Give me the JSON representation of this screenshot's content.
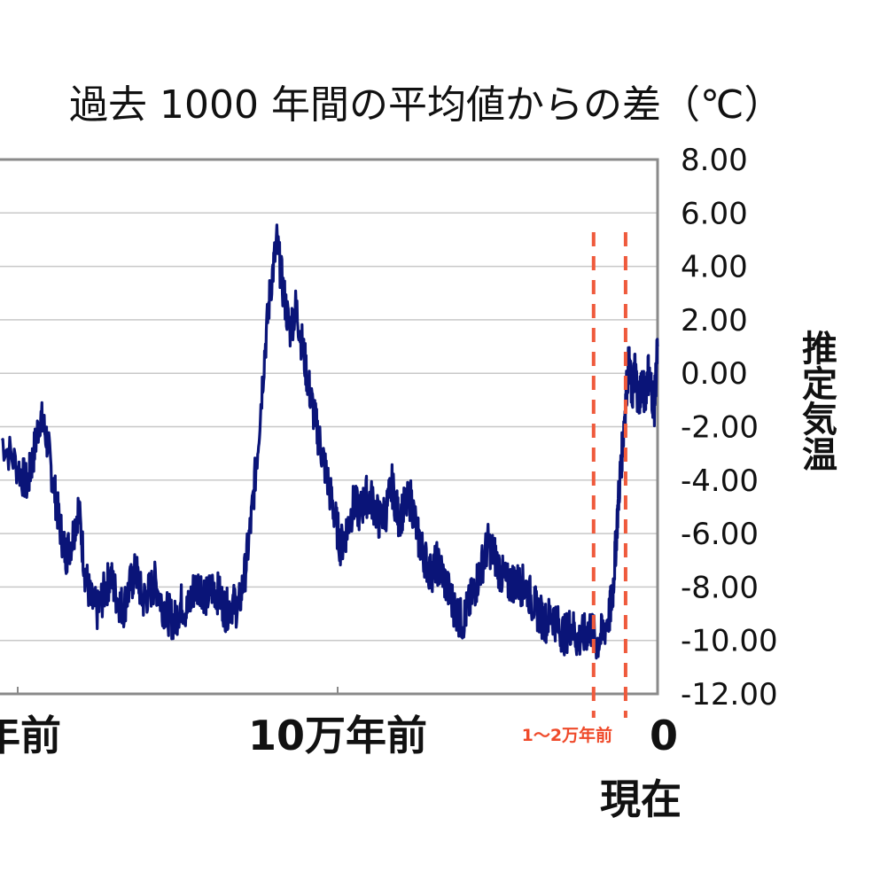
{
  "chart_data": {
    "type": "line",
    "title": "過去 1000 年間の平均値からの差（℃）",
    "ylabel": "推定気温",
    "ylim": [
      -12,
      8
    ],
    "y_ticks": [
      "8.00",
      "6.00",
      "4.00",
      "2.00",
      "0.00",
      "-2.00",
      "-4.00",
      "-6.00",
      "-8.00",
      "-10.00",
      "-12.00"
    ],
    "x_unit": "年前",
    "xlim": [
      200000,
      0
    ],
    "x_ticks": [
      {
        "x": 100000,
        "label": "10万年前"
      },
      {
        "x": 0,
        "label": "0"
      }
    ],
    "x_tick_cropped": {
      "x": 200000,
      "label": "万年前"
    },
    "now_label": "現在",
    "grid": true,
    "annotations": [
      {
        "type": "dashed-vline",
        "x": 20000
      },
      {
        "type": "dashed-vline",
        "x": 10000
      },
      {
        "type": "label",
        "text": "1〜2万年前",
        "x": 15000
      }
    ],
    "series": [
      {
        "values_note": "",
        "x": [
          205000,
          200000,
          197000,
          195000,
          193000,
          191000,
          189000,
          187000,
          185000,
          183000,
          181000,
          179000,
          177000,
          175000,
          173000,
          171000,
          169000,
          167000,
          165000,
          163000,
          161000,
          159000,
          157000,
          155000,
          153000,
          151000,
          149000,
          147000,
          145000,
          143000,
          141000,
          139000,
          137000,
          135000,
          133000,
          131000,
          129000,
          127000,
          125000,
          123000,
          121000,
          119000,
          117000,
          115000,
          113000,
          111000,
          109000,
          107000,
          105000,
          103000,
          101000,
          99000,
          97000,
          95000,
          93000,
          91000,
          89000,
          87000,
          85000,
          83000,
          81000,
          79000,
          77000,
          75000,
          73000,
          71000,
          69000,
          67000,
          65000,
          63000,
          61000,
          59000,
          57000,
          55000,
          53000,
          51000,
          49000,
          47000,
          45000,
          43000,
          41000,
          39000,
          37000,
          35000,
          33000,
          31000,
          29000,
          27000,
          25000,
          23000,
          21000,
          19000,
          17000,
          15000,
          14000,
          13000,
          12000,
          11000,
          10000,
          9000,
          8000,
          7000,
          6000,
          5000,
          4000,
          3000,
          2000,
          1000,
          0
        ],
        "values": [
          -2.5,
          -3.5,
          -4.2,
          -3.0,
          -1.6,
          -2.4,
          -4.0,
          -5.6,
          -6.8,
          -6.2,
          -5.0,
          -7.4,
          -8.6,
          -8.9,
          -8.2,
          -7.6,
          -8.4,
          -8.8,
          -8.0,
          -7.4,
          -8.5,
          -8.2,
          -7.8,
          -8.6,
          -9.0,
          -9.3,
          -8.6,
          -8.9,
          -8.1,
          -7.9,
          -8.4,
          -8.0,
          -8.3,
          -8.9,
          -8.6,
          -8.8,
          -7.5,
          -5.5,
          -2.8,
          0.5,
          3.2,
          4.9,
          3.1,
          1.6,
          2.5,
          1.0,
          -0.5,
          -1.8,
          -2.9,
          -4.1,
          -5.3,
          -6.5,
          -5.8,
          -4.9,
          -5.2,
          -4.6,
          -4.8,
          -5.5,
          -5.2,
          -4.2,
          -5.4,
          -5.0,
          -4.7,
          -6.1,
          -6.8,
          -7.5,
          -7.1,
          -7.6,
          -8.3,
          -8.9,
          -9.3,
          -8.7,
          -8.0,
          -7.2,
          -6.4,
          -6.8,
          -7.5,
          -7.9,
          -7.8,
          -7.9,
          -8.0,
          -8.6,
          -9.0,
          -9.3,
          -9.0,
          -9.5,
          -9.8,
          -9.4,
          -10.0,
          -9.8,
          -9.5,
          -10.1,
          -9.7,
          -9.0,
          -8.2,
          -6.3,
          -4.3,
          -2.8,
          -1.0,
          0.4,
          -0.8,
          0.2,
          -1.1,
          -0.3,
          -0.9,
          0.1,
          -0.6,
          -1.2,
          1.0
        ]
      }
    ]
  }
}
